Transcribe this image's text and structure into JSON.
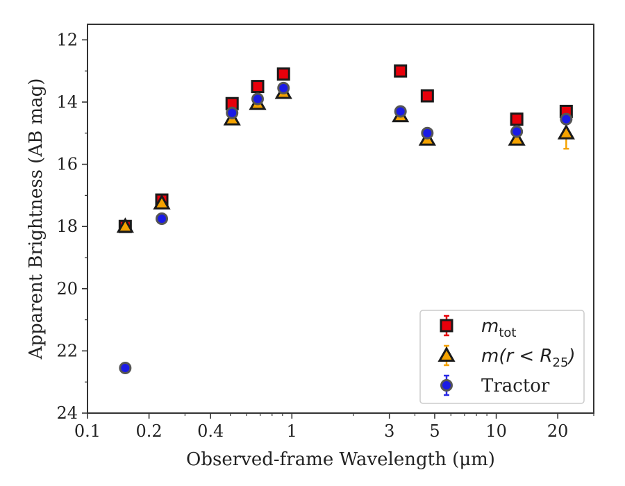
{
  "chart_data": {
    "type": "scatter",
    "xlabel": "Observed-frame Wavelength (μm)",
    "ylabel": "Apparent Brightness (AB mag)",
    "xscale": "log",
    "yinverted": true,
    "xlim": [
      0.1,
      30
    ],
    "ylim": [
      24,
      11.5
    ],
    "x_ticks": [
      0.1,
      0.2,
      0.4,
      1,
      3,
      5,
      10,
      20
    ],
    "x_tick_labels": [
      "0.1",
      "0.2",
      "0.4",
      "1",
      "3",
      "5",
      "10",
      "20"
    ],
    "y_ticks": [
      12,
      14,
      16,
      18,
      20,
      22,
      24
    ],
    "y_tick_labels": [
      "12",
      "14",
      "16",
      "18",
      "20",
      "22",
      "24"
    ],
    "grid": false,
    "legend_position": "lower-right",
    "series": [
      {
        "name": "m_tot",
        "legend_label": "m",
        "legend_sub": "tot",
        "marker": "square",
        "color": "#e8000b",
        "edge_color": "#1a1a1a",
        "errorbar_color": "#e8000b",
        "points": [
          {
            "x": 0.153,
            "y": 18.0,
            "err": 0.05
          },
          {
            "x": 0.231,
            "y": 17.15,
            "err": 0.05
          },
          {
            "x": 0.51,
            "y": 14.05,
            "err": 0.05
          },
          {
            "x": 0.68,
            "y": 13.5,
            "err": 0.05
          },
          {
            "x": 0.91,
            "y": 13.1,
            "err": 0.05
          },
          {
            "x": 3.4,
            "y": 13.0,
            "err": 0.05
          },
          {
            "x": 4.6,
            "y": 13.8,
            "err": 0.05
          },
          {
            "x": 12.6,
            "y": 14.55,
            "err": 0.05
          },
          {
            "x": 22.0,
            "y": 14.3,
            "err": 0.05
          }
        ]
      },
      {
        "name": "m(r < R25)",
        "legend_label": "m(r < R",
        "legend_sub": "25",
        "legend_close": ")",
        "marker": "triangle",
        "color": "#f5a300",
        "edge_color": "#1a1a1a",
        "errorbar_color": "#f5a300",
        "points": [
          {
            "x": 0.153,
            "y": 18.0,
            "err": 0.05
          },
          {
            "x": 0.231,
            "y": 17.25,
            "err": 0.05
          },
          {
            "x": 0.51,
            "y": 14.55,
            "err": 0.05
          },
          {
            "x": 0.68,
            "y": 14.05,
            "err": 0.05
          },
          {
            "x": 0.91,
            "y": 13.7,
            "err": 0.05
          },
          {
            "x": 3.4,
            "y": 14.45,
            "err": 0.05
          },
          {
            "x": 4.6,
            "y": 15.2,
            "err": 0.05
          },
          {
            "x": 12.6,
            "y": 15.2,
            "err": 0.05
          },
          {
            "x": 22.0,
            "y": 15.0,
            "err": 0.5
          }
        ]
      },
      {
        "name": "Tractor",
        "legend_label": "Tractor",
        "marker": "circle",
        "color": "#1a1ae6",
        "edge_color": "#555555",
        "errorbar_color": "#2a2ae6",
        "points": [
          {
            "x": 0.153,
            "y": 22.55,
            "err": 0.05
          },
          {
            "x": 0.231,
            "y": 17.75,
            "err": 0.05
          },
          {
            "x": 0.51,
            "y": 14.35,
            "err": 0.05
          },
          {
            "x": 0.68,
            "y": 13.9,
            "err": 0.05
          },
          {
            "x": 0.91,
            "y": 13.55,
            "err": 0.05
          },
          {
            "x": 3.4,
            "y": 14.3,
            "err": 0.05
          },
          {
            "x": 4.6,
            "y": 15.0,
            "err": 0.05
          },
          {
            "x": 12.6,
            "y": 14.95,
            "err": 0.05
          },
          {
            "x": 22.0,
            "y": 14.55,
            "err": 0.05
          }
        ]
      }
    ]
  }
}
